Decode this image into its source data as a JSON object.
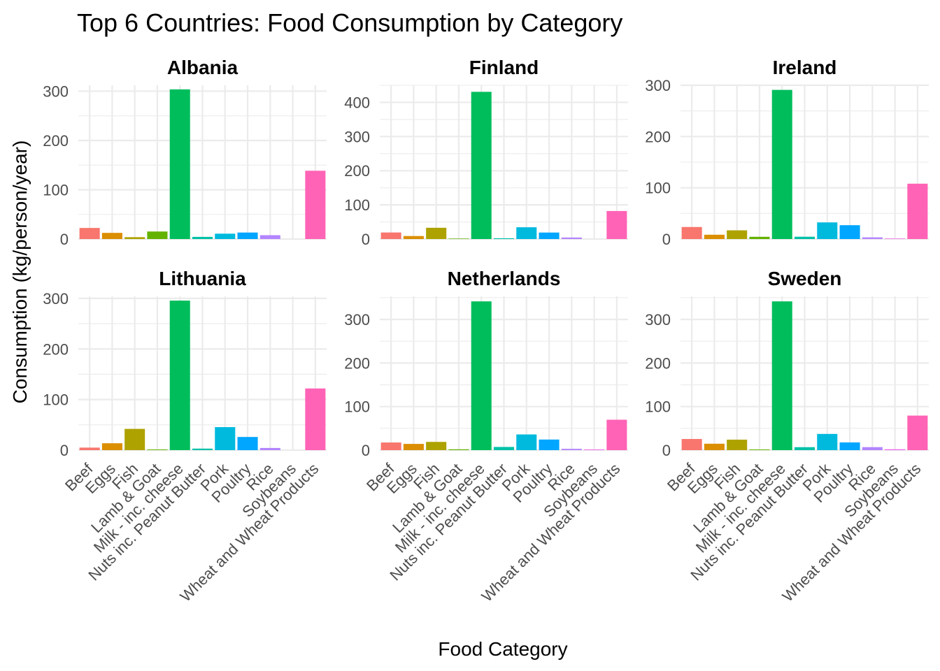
{
  "chart_data": {
    "type": "bar",
    "title": "Top 6 Countries: Food Consumption by Category",
    "xlabel": "Food Category",
    "ylabel": "Consumption (kg/person/year)",
    "grid": true,
    "legend": "none",
    "categories": [
      "Beef",
      "Eggs",
      "Fish",
      "Lamb & Goat",
      "Milk - inc. cheese",
      "Nuts inc. Peanut Butter",
      "Pork",
      "Poultry",
      "Rice",
      "Soybeans",
      "Wheat and Wheat Products"
    ],
    "category_colors": [
      "#F8766D",
      "#DB8E00",
      "#AEA200",
      "#64B200",
      "#00BD5C",
      "#00C1A7",
      "#00BADE",
      "#00A6FF",
      "#B385FF",
      "#EF67EB",
      "#FF63B6"
    ],
    "facets": [
      {
        "name": "Albania",
        "ylim": [
          0,
          312
        ],
        "yticks": [
          0,
          100,
          200,
          300
        ],
        "values": [
          22.5,
          12.5,
          3.8,
          15.3,
          303.7,
          4.4,
          10.9,
          13.2,
          7.8,
          0.0,
          138.6
        ]
      },
      {
        "name": "Finland",
        "ylim": [
          0,
          450
        ],
        "yticks": [
          0,
          100,
          200,
          300,
          400
        ],
        "values": [
          19.2,
          8.8,
          33.0,
          1.4,
          430.8,
          2.3,
          34.5,
          19.0,
          4.5,
          0.0,
          82.0
        ]
      },
      {
        "name": "Ireland",
        "ylim": [
          0,
          300
        ],
        "yticks": [
          0,
          100,
          200,
          300
        ],
        "values": [
          23.5,
          8.4,
          17.0,
          4.4,
          291.0,
          4.5,
          32.5,
          27.0,
          3.3,
          1.0,
          108.0
        ]
      },
      {
        "name": "Lithuania",
        "ylim": [
          0,
          304
        ],
        "yticks": [
          0,
          100,
          200,
          300
        ],
        "values": [
          5.0,
          13.6,
          42.0,
          1.3,
          295.6,
          3.0,
          45.5,
          26.0,
          4.3,
          0.0,
          121.9
        ]
      },
      {
        "name": "Netherlands",
        "ylim": [
          0,
          353
        ],
        "yticks": [
          0,
          100,
          200,
          300
        ],
        "values": [
          17.5,
          14.3,
          18.9,
          1.9,
          341.5,
          7.3,
          36.0,
          24.3,
          3.0,
          1.5,
          69.8
        ]
      },
      {
        "name": "Sweden",
        "ylim": [
          0,
          353
        ],
        "yticks": [
          0,
          100,
          200,
          300
        ],
        "values": [
          25.6,
          14.7,
          24.0,
          1.5,
          341.5,
          6.8,
          37.2,
          17.7,
          6.9,
          2.0,
          79.3
        ]
      }
    ]
  }
}
